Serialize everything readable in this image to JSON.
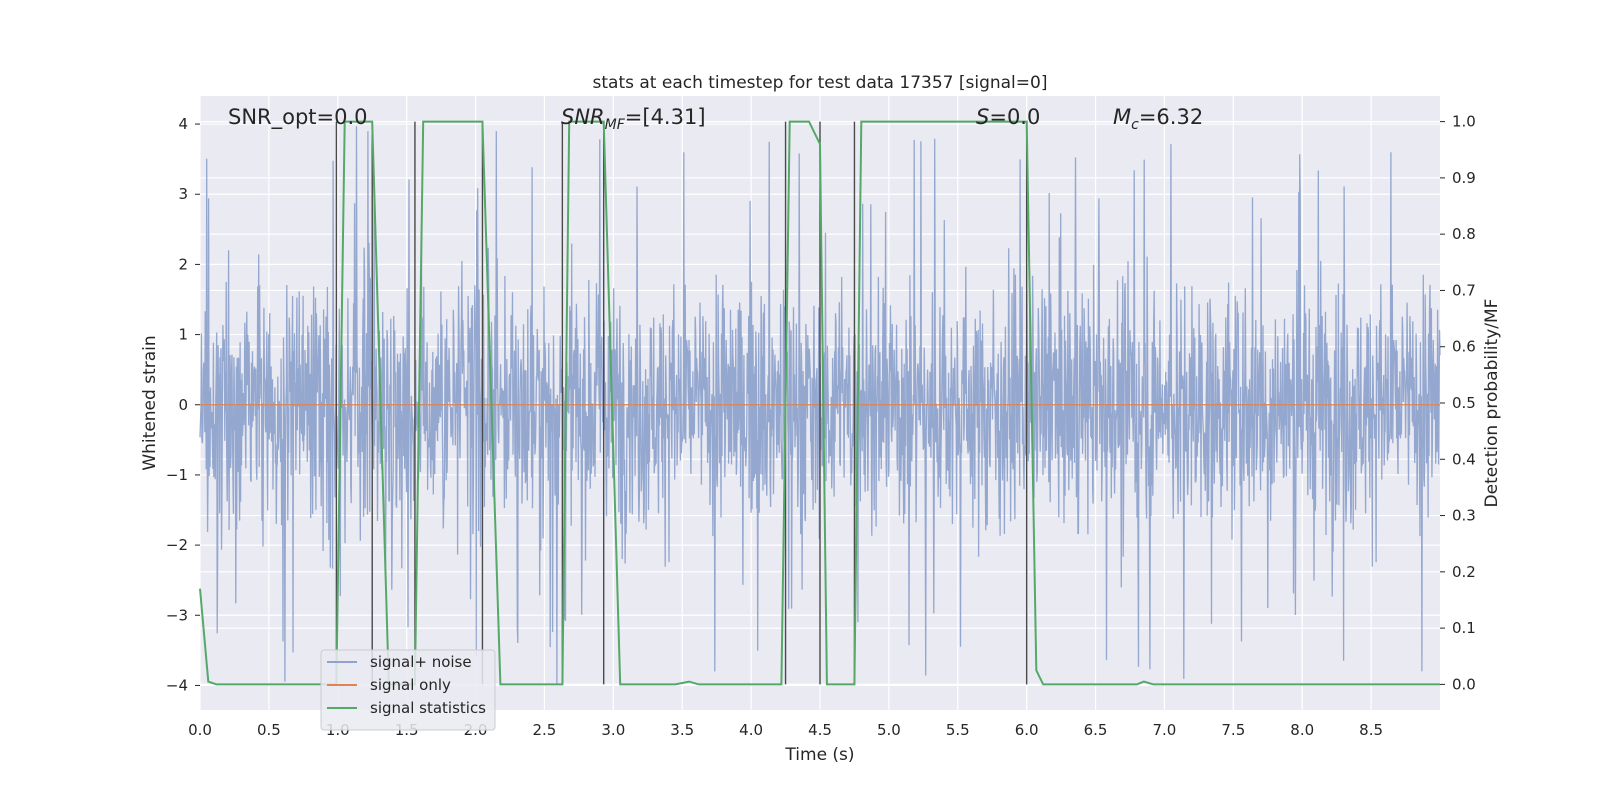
{
  "chart_data": {
    "type": "line",
    "title": "stats at each timestep for test data 17357 [signal=0]",
    "xlabel": "Time (s)",
    "ylabel_left": "Whitened strain",
    "ylabel_right": "Detection probability/MF",
    "xlim": [
      0.0,
      9.0
    ],
    "ylim_left": [
      -4.35,
      4.4
    ],
    "ylim_right": [
      -0.0455,
      1.0455
    ],
    "x_ticks": [
      "0.0",
      "0.5",
      "1.0",
      "1.5",
      "2.0",
      "2.5",
      "3.0",
      "3.5",
      "4.0",
      "4.5",
      "5.0",
      "5.5",
      "6.0",
      "6.5",
      "7.0",
      "7.5",
      "8.0",
      "8.5"
    ],
    "x_tick_values": [
      0.0,
      0.5,
      1.0,
      1.5,
      2.0,
      2.5,
      3.0,
      3.5,
      4.0,
      4.5,
      5.0,
      5.5,
      6.0,
      6.5,
      7.0,
      7.5,
      8.0,
      8.5
    ],
    "y_left_ticks": [
      "−4",
      "−3",
      "−2",
      "−1",
      "0",
      "1",
      "2",
      "3",
      "4"
    ],
    "y_left_tick_values": [
      -4,
      -3,
      -2,
      -1,
      0,
      1,
      2,
      3,
      4
    ],
    "y_right_ticks": [
      "0.0",
      "0.1",
      "0.2",
      "0.3",
      "0.4",
      "0.5",
      "0.6",
      "0.7",
      "0.8",
      "0.9",
      "1.0"
    ],
    "y_right_tick_values": [
      0.0,
      0.1,
      0.2,
      0.3,
      0.4,
      0.5,
      0.6,
      0.7,
      0.8,
      0.9,
      1.0
    ],
    "grid": true,
    "annotations": [
      {
        "key": "snr_opt",
        "text": "SNR_opt=0.0",
        "x": 0.2
      },
      {
        "key": "snr_mf_label",
        "text": "SNR",
        "x": 2.6
      },
      {
        "key": "snr_mf_sub",
        "text": "MF",
        "x": 2.6
      },
      {
        "key": "snr_mf_value",
        "text": "=[4.31]",
        "x": 2.6
      },
      {
        "key": "s_label",
        "text": "S",
        "x": 5.6
      },
      {
        "key": "s_value",
        "text": "=0.0",
        "x": 5.6
      },
      {
        "key": "mc_label",
        "text": "M",
        "x": 6.6
      },
      {
        "key": "mc_sub",
        "text": "c",
        "x": 6.6
      },
      {
        "key": "mc_value",
        "text": "=6.32",
        "x": 6.6
      }
    ],
    "legend": {
      "placement": "lower-left",
      "entries": [
        {
          "label": "signal+ noise",
          "color": "#8fa3cc"
        },
        {
          "label": "signal only",
          "color": "#dd8452"
        },
        {
          "label": "signal statistics",
          "color": "#55a868"
        }
      ]
    },
    "series": [
      {
        "name": "signal+ noise",
        "color": "#8fa3cc",
        "note": "whitened strain noise, amplitude envelope approx ±2.4 with spikes up to ±4",
        "envelope": 2.4,
        "max_spike": 4.0
      },
      {
        "name": "signal only",
        "color": "#dd8452",
        "values_description": "flat at 0",
        "x": [
          0.0,
          9.0
        ],
        "y": [
          0.0,
          0.0
        ]
      },
      {
        "name": "signal statistics",
        "color": "#55a868",
        "axis": "right",
        "x": [
          0.0,
          0.06,
          0.12,
          0.99,
          1.05,
          1.1,
          1.25,
          1.37,
          1.56,
          1.62,
          2.05,
          2.18,
          2.63,
          2.68,
          2.93,
          3.05,
          3.45,
          3.55,
          3.62,
          3.7,
          4.22,
          4.28,
          4.42,
          4.5,
          4.55,
          4.75,
          4.8,
          5.0,
          6.0,
          6.07,
          6.12,
          6.8,
          6.85,
          6.92,
          9.0
        ],
        "y": [
          0.17,
          0.005,
          0.0,
          0.0,
          1.0,
          1.0,
          1.0,
          0.0,
          0.0,
          1.0,
          1.0,
          0.0,
          0.0,
          1.0,
          1.0,
          0.0,
          0.0,
          0.005,
          0.0,
          0.0,
          0.0,
          1.0,
          1.0,
          0.96,
          0.0,
          0.0,
          1.0,
          1.0,
          1.0,
          0.025,
          0.0,
          0.0,
          0.005,
          0.0,
          0.0
        ]
      }
    ],
    "vertical_lines": {
      "color": "#4a4a4a",
      "x": [
        0.99,
        1.25,
        1.56,
        2.05,
        2.63,
        2.93,
        4.25,
        4.5,
        4.75,
        6.0
      ]
    }
  }
}
